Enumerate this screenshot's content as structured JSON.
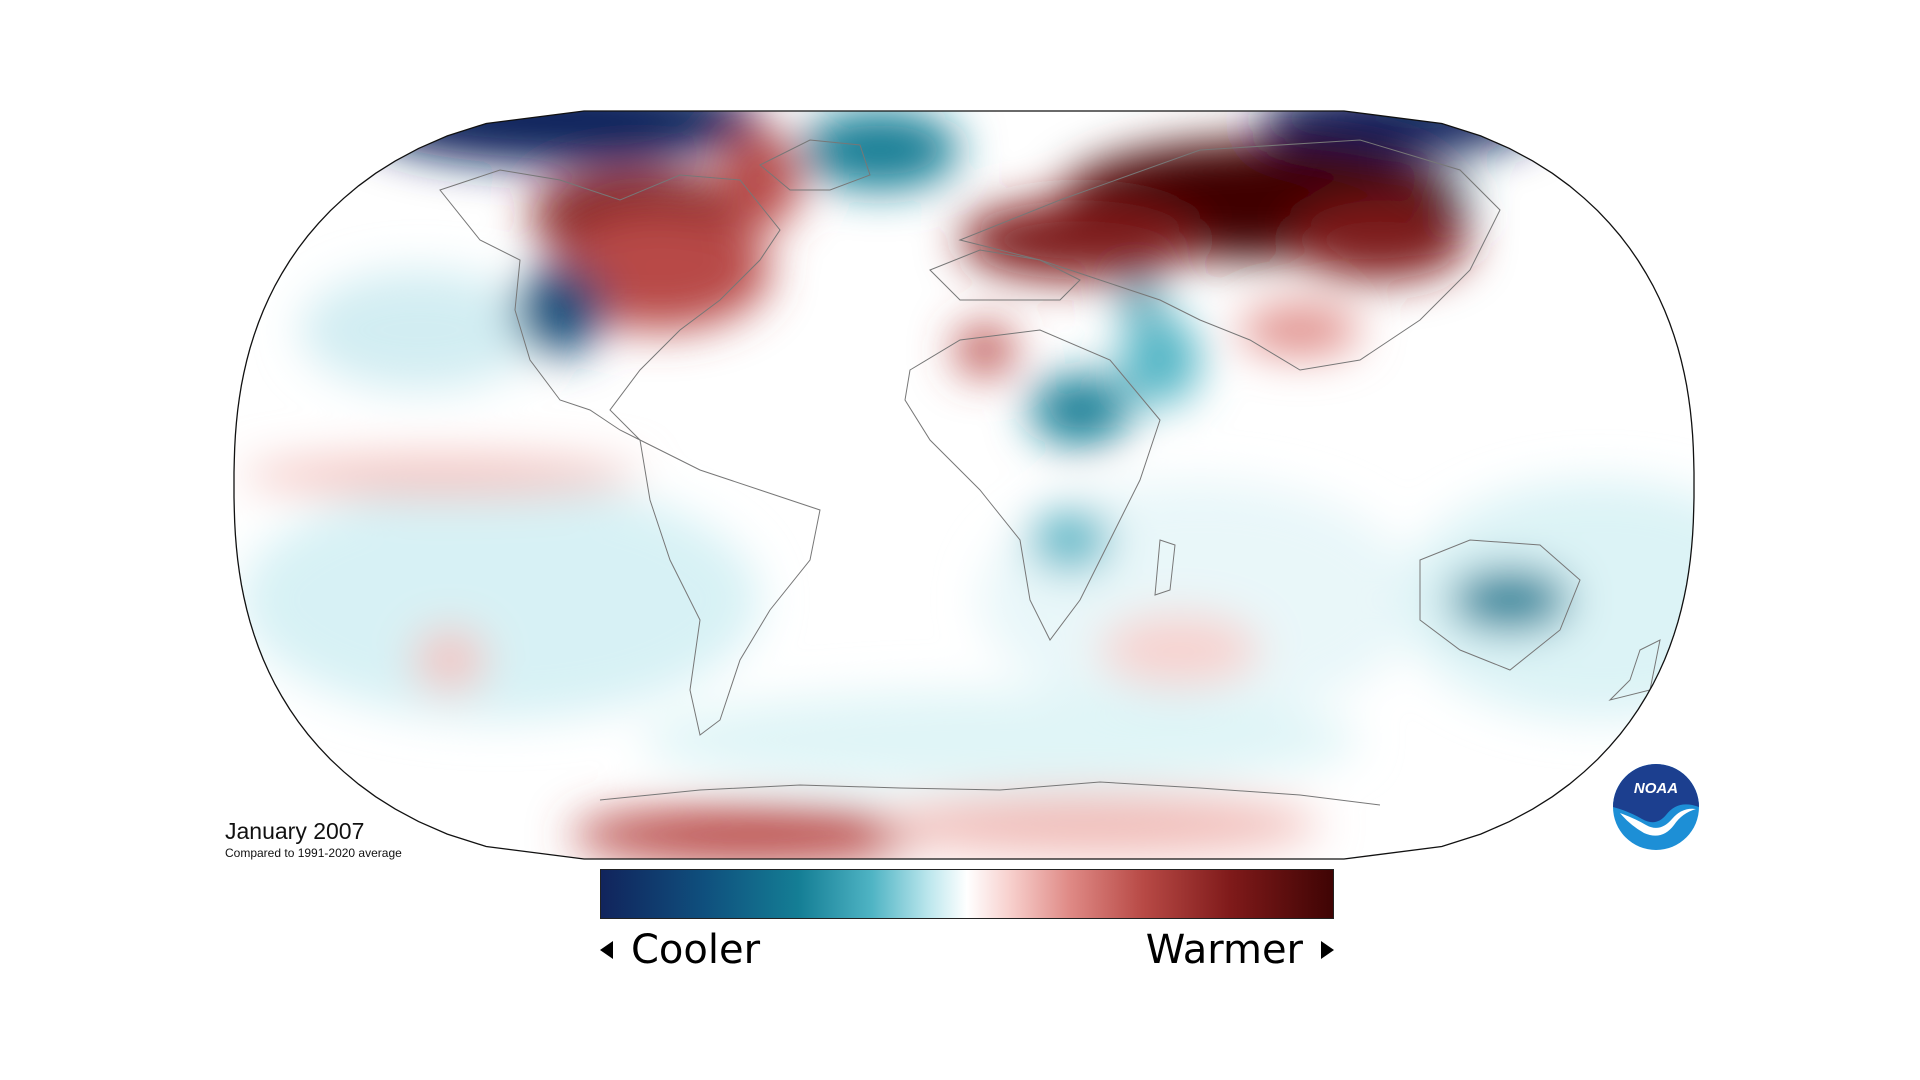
{
  "map": {
    "title": "January 2007",
    "subtitle": "Compared to 1991-2020 average",
    "projection": "Robinson",
    "variable": "temperature anomaly",
    "colors": {
      "cool_extreme": "#11245c",
      "cool": "#147e95",
      "neutral": "#ffffff",
      "warm": "#b84a46",
      "warm_extreme": "#3f0404"
    }
  },
  "legend": {
    "left_label": "Cooler",
    "right_label": "Warmer",
    "left_icon": "triangle-left-icon",
    "right_icon": "triangle-right-icon"
  },
  "logo": {
    "text": "NOAA",
    "icon": "noaa-logo-icon",
    "colors": {
      "top": "#1c3f8f",
      "bottom": "#1d8fd6",
      "bird": "#ffffff"
    }
  }
}
